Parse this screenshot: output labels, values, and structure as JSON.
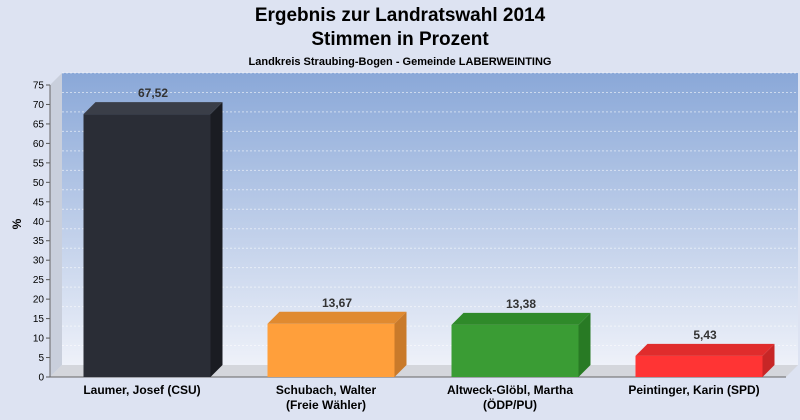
{
  "chart_data": {
    "type": "bar",
    "title": "Ergebnis zur Landratswahl 2014",
    "subtitle": "Stimmen in Prozent",
    "caption": "Landkreis Straubing-Bogen - Gemeinde LABERWEINTING",
    "ylabel": "%",
    "ylim": [
      0,
      75
    ],
    "yticks": [
      0,
      5,
      10,
      15,
      20,
      25,
      30,
      35,
      40,
      45,
      50,
      55,
      60,
      65,
      70,
      75
    ],
    "grid": true,
    "categories": [
      [
        "Laumer, Josef (CSU)"
      ],
      [
        "Schubach, Walter",
        "(Freie Wähler)"
      ],
      [
        "Altweck-Glöbl, Martha",
        "(ÖDP/PU)"
      ],
      [
        "Peintinger, Karin (SPD)"
      ]
    ],
    "values": [
      67.52,
      13.67,
      13.38,
      5.43
    ],
    "value_labels": [
      "67,52",
      "13,67",
      "13,38",
      "5,43"
    ],
    "colors": [
      "#2a2d36",
      "#ff9f3b",
      "#3a9c34",
      "#ff3434"
    ],
    "side_colors": [
      "#1a1c22",
      "#c97a2a",
      "#287a24",
      "#c72626"
    ],
    "top_colors": [
      "#3a3e48",
      "#e08a30",
      "#2f8a2a",
      "#e02c2c"
    ]
  }
}
